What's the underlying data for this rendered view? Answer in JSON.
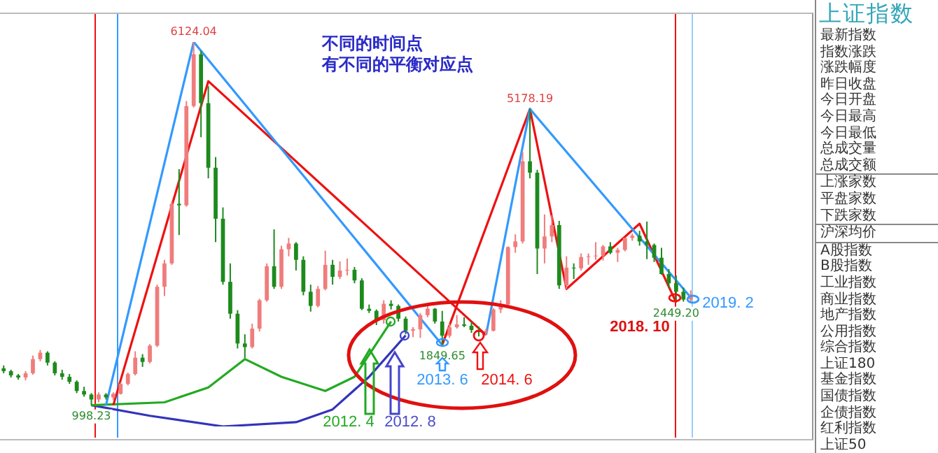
{
  "chart_data": [
    {
      "type": "candlestick",
      "categories": [
        null,
        null,
        null,
        null,
        null,
        null,
        null,
        null,
        null,
        null,
        null,
        null,
        null,
        null,
        null,
        null,
        null,
        null,
        null,
        null,
        null,
        null,
        null,
        null,
        null,
        null,
        null,
        null,
        null,
        null,
        null,
        null,
        null,
        null,
        null,
        null,
        null,
        null,
        null,
        null,
        null,
        null,
        null,
        null,
        null,
        null,
        null,
        null,
        null,
        null,
        null,
        null,
        null,
        null,
        null,
        null,
        null,
        null,
        null,
        null,
        null,
        null,
        null,
        null,
        null,
        null,
        null,
        null,
        null,
        null,
        null,
        null,
        null,
        null,
        null,
        null,
        null,
        null,
        null,
        null,
        null,
        null,
        null,
        null,
        null,
        null,
        null,
        null,
        null,
        null,
        null,
        null,
        null,
        null,
        null
      ],
      "ohlc": [
        [
          1520,
          1560,
          1450,
          1480
        ],
        [
          1480,
          1500,
          1390,
          1420
        ],
        [
          1420,
          1440,
          1360,
          1390
        ],
        [
          1390,
          1480,
          1350,
          1450
        ],
        [
          1450,
          1700,
          1430,
          1650
        ],
        [
          1650,
          1780,
          1620,
          1740
        ],
        [
          1740,
          1760,
          1560,
          1600
        ],
        [
          1600,
          1620,
          1420,
          1450
        ],
        [
          1450,
          1500,
          1360,
          1400
        ],
        [
          1400,
          1440,
          1300,
          1330
        ],
        [
          1330,
          1350,
          1170,
          1200
        ],
        [
          1200,
          1260,
          1120,
          1150
        ],
        [
          1150,
          1170,
          998.23,
          1080
        ],
        [
          1080,
          1180,
          1040,
          1150
        ],
        [
          1150,
          1170,
          1080,
          1110
        ],
        [
          1110,
          1180,
          1070,
          1160
        ],
        [
          1160,
          1320,
          1150,
          1300
        ],
        [
          1300,
          1460,
          1280,
          1440
        ],
        [
          1440,
          1760,
          1420,
          1670
        ],
        [
          1670,
          1720,
          1540,
          1610
        ],
        [
          1610,
          1860,
          1590,
          1840
        ],
        [
          1840,
          2700,
          1820,
          2670
        ],
        [
          2670,
          3050,
          2540,
          3000
        ],
        [
          3000,
          3880,
          2980,
          3840
        ],
        [
          3840,
          4330,
          3400,
          3820
        ],
        [
          3820,
          5290,
          3800,
          5220
        ],
        [
          5220,
          6124.04,
          5200,
          5950
        ],
        [
          5950,
          6000,
          4780,
          5260
        ],
        [
          5260,
          5500,
          4200,
          4350
        ],
        [
          4350,
          4500,
          3300,
          3630
        ],
        [
          3630,
          3790,
          2700,
          2740
        ],
        [
          2740,
          3000,
          2220,
          2290
        ],
        [
          2290,
          2340,
          1800,
          1870
        ],
        [
          1870,
          2000,
          1664,
          1820
        ],
        [
          1820,
          2150,
          1800,
          2080
        ],
        [
          2080,
          2500,
          2040,
          2480
        ],
        [
          2480,
          3000,
          2460,
          2960
        ],
        [
          2960,
          3480,
          2640,
          2670
        ],
        [
          2670,
          3250,
          2640,
          3200
        ],
        [
          3200,
          3360,
          3100,
          3280
        ],
        [
          3280,
          3300,
          2900,
          3050
        ],
        [
          3050,
          3100,
          2550,
          2600
        ],
        [
          2600,
          2700,
          2320,
          2400
        ],
        [
          2400,
          2680,
          2380,
          2640
        ],
        [
          2640,
          3180,
          2620,
          2980
        ],
        [
          2980,
          3050,
          2700,
          2810
        ],
        [
          2810,
          3030,
          2780,
          2900
        ],
        [
          2900,
          3070,
          2830,
          2910
        ],
        [
          2910,
          2950,
          2720,
          2760
        ],
        [
          2760,
          2790,
          2340,
          2360
        ],
        [
          2360,
          2420,
          2300,
          2330
        ],
        [
          2330,
          2350,
          2130,
          2200
        ],
        [
          2200,
          2480,
          2150,
          2430
        ],
        [
          2430,
          2480,
          2350,
          2400
        ],
        [
          2400,
          2420,
          2180,
          2220
        ],
        [
          2220,
          2250,
          2000,
          2050
        ],
        [
          2050,
          2100,
          1960,
          2070
        ],
        [
          2070,
          2300,
          1950,
          2270
        ],
        [
          2270,
          2440,
          2240,
          2360
        ],
        [
          2360,
          2370,
          2150,
          2180
        ],
        [
          2180,
          2330,
          1849.65,
          1980
        ],
        [
          1980,
          2150,
          1950,
          2100
        ],
        [
          2100,
          2270,
          2080,
          2140
        ],
        [
          2140,
          2240,
          2100,
          2120
        ],
        [
          2120,
          2180,
          2020,
          2060
        ],
        [
          2060,
          2110,
          1970,
          2030
        ],
        [
          2030,
          2080,
          1990,
          2050
        ],
        [
          2050,
          2370,
          2040,
          2350
        ],
        [
          2350,
          2480,
          2300,
          2420
        ],
        [
          2420,
          3240,
          2400,
          3230
        ],
        [
          3230,
          3410,
          3150,
          3310
        ],
        [
          3310,
          4570,
          3280,
          4440
        ],
        [
          4440,
          5178.19,
          4200,
          4280
        ],
        [
          4280,
          4320,
          2850,
          3210
        ],
        [
          3210,
          3690,
          3000,
          3380
        ],
        [
          3380,
          3680,
          3300,
          3540
        ],
        [
          3540,
          3600,
          2640,
          2690
        ],
        [
          2690,
          3100,
          2640,
          2940
        ],
        [
          2940,
          3000,
          2780,
          2930
        ],
        [
          2930,
          3140,
          2900,
          3090
        ],
        [
          3090,
          3140,
          2980,
          3100
        ],
        [
          3100,
          3300,
          3050,
          3110
        ],
        [
          3110,
          3260,
          3040,
          3240
        ],
        [
          3240,
          3300,
          3130,
          3150
        ],
        [
          3150,
          3220,
          3020,
          3190
        ],
        [
          3190,
          3360,
          3170,
          3360
        ],
        [
          3360,
          3420,
          3320,
          3390
        ],
        [
          3390,
          3460,
          3250,
          3310
        ],
        [
          3310,
          3590,
          3060,
          3260
        ],
        [
          3260,
          3280,
          3020,
          3080
        ],
        [
          3080,
          3220,
          2840,
          2850
        ],
        [
          2850,
          2920,
          2650,
          2720
        ],
        [
          2720,
          2830,
          2449.2,
          2600
        ],
        [
          2600,
          2660,
          2460,
          2490
        ],
        [
          2490,
          2620,
          2460,
          2560
        ]
      ],
      "series": [
        {
          "type": "line",
          "color": "#3399ff",
          "values": [
            null,
            null,
            null,
            null,
            null,
            null,
            null,
            null,
            null,
            null,
            null,
            null,
            null,
            null,
            1000,
            null,
            null,
            null,
            null,
            null,
            null,
            null,
            null,
            null,
            null,
            null,
            6124.04,
            null,
            null,
            null,
            null,
            null,
            null,
            null,
            null,
            null,
            null,
            null,
            null,
            null,
            null,
            null,
            null,
            null,
            null,
            null,
            null,
            null,
            null,
            null,
            null,
            null,
            null,
            null,
            null,
            null,
            null,
            null,
            null,
            null,
            1849.65,
            null,
            null,
            null,
            null,
            null,
            null,
            null,
            null,
            null,
            null,
            null,
            null,
            null,
            null,
            null,
            null,
            null,
            null,
            null,
            null,
            null,
            null,
            null,
            null,
            null,
            null,
            null,
            null,
            null,
            null,
            null,
            null,
            null,
            null
          ]
        },
        {
          "type": "line",
          "color": "#3399ff",
          "values": [
            null,
            null,
            null,
            null,
            null,
            null,
            null,
            null,
            null,
            null,
            null,
            null,
            null,
            null,
            null,
            null,
            null,
            null,
            null,
            null,
            null,
            null,
            null,
            null,
            null,
            null,
            null,
            null,
            null,
            null,
            null,
            null,
            null,
            null,
            null,
            null,
            null,
            null,
            null,
            null,
            null,
            null,
            null,
            null,
            null,
            null,
            null,
            null,
            null,
            null,
            null,
            null,
            null,
            null,
            null,
            null,
            null,
            null,
            null,
            null,
            null,
            null,
            null,
            null,
            null,
            null,
            1990,
            null,
            null,
            null,
            null,
            null,
            5178.19,
            null,
            null,
            null,
            null,
            null,
            null,
            null,
            null,
            null,
            null,
            null,
            null,
            null,
            null,
            null,
            null,
            null,
            null,
            null,
            null,
            null,
            2520
          ]
        },
        {
          "type": "line",
          "color": "#ee1111",
          "values": [
            null,
            null,
            null,
            null,
            null,
            null,
            null,
            null,
            null,
            null,
            null,
            null,
            null,
            null,
            null,
            1000,
            null,
            null,
            null,
            null,
            null,
            null,
            null,
            null,
            null,
            null,
            null,
            null,
            5570,
            null,
            null,
            null,
            null,
            null,
            null,
            null,
            null,
            null,
            null,
            null,
            null,
            null,
            null,
            null,
            null,
            null,
            null,
            null,
            null,
            null,
            null,
            null,
            null,
            null,
            null,
            null,
            null,
            null,
            null,
            null,
            null,
            null,
            null,
            null,
            null,
            null,
            1990,
            null,
            null,
            null,
            null,
            null,
            null,
            null,
            null,
            null,
            null,
            null,
            null,
            null,
            null,
            null,
            null,
            null,
            null,
            null,
            null,
            null,
            null,
            null,
            null,
            null,
            null,
            null,
            null
          ]
        },
        {
          "type": "line",
          "color": "#ee1111",
          "values": [
            null,
            null,
            null,
            null,
            null,
            null,
            null,
            null,
            null,
            null,
            null,
            null,
            null,
            null,
            null,
            null,
            null,
            null,
            null,
            null,
            null,
            null,
            null,
            null,
            null,
            null,
            null,
            null,
            null,
            null,
            null,
            null,
            null,
            null,
            null,
            null,
            null,
            null,
            null,
            null,
            null,
            null,
            null,
            null,
            null,
            null,
            null,
            null,
            null,
            null,
            null,
            null,
            null,
            null,
            null,
            null,
            null,
            null,
            null,
            null,
            1849.65,
            null,
            null,
            null,
            null,
            null,
            null,
            null,
            null,
            null,
            null,
            null,
            5178.19,
            null,
            null,
            null,
            null,
            2640,
            null,
            null,
            null,
            null,
            null,
            null,
            null,
            null,
            null,
            3560,
            null,
            null,
            null,
            null,
            2449.2,
            null,
            null
          ]
        },
        {
          "type": "line",
          "color": "#22aa22",
          "values": [
            null,
            null,
            null,
            null,
            null,
            null,
            null,
            null,
            null,
            null,
            null,
            null,
            1000,
            null,
            null,
            null,
            null,
            null,
            null,
            null,
            null,
            null,
            1040,
            null,
            null,
            null,
            null,
            null,
            1250,
            null,
            null,
            null,
            null,
            1650,
            null,
            null,
            null,
            null,
            1400,
            null,
            null,
            null,
            null,
            null,
            1200,
            null,
            null,
            null,
            1400,
            null,
            null,
            null,
            null,
            2180,
            null,
            null,
            null,
            null,
            null,
            null,
            null,
            null,
            null,
            null,
            null,
            null,
            null,
            null,
            null,
            null,
            null,
            null,
            null,
            null,
            null,
            null,
            null,
            null,
            null,
            null,
            null,
            null,
            null,
            null,
            null,
            null,
            null,
            null,
            null,
            null,
            null,
            null,
            null,
            null,
            null
          ]
        },
        {
          "type": "line",
          "color": "#3333bb",
          "values": [
            null,
            null,
            null,
            null,
            null,
            null,
            null,
            null,
            null,
            null,
            null,
            null,
            1000,
            null,
            null,
            null,
            null,
            null,
            null,
            null,
            850,
            null,
            null,
            null,
            null,
            null,
            null,
            null,
            null,
            null,
            700,
            null,
            null,
            null,
            null,
            null,
            null,
            null,
            null,
            null,
            760,
            null,
            null,
            null,
            null,
            940,
            null,
            null,
            null,
            null,
            1400,
            null,
            null,
            null,
            null,
            1985,
            null,
            null,
            null,
            null,
            null,
            null,
            null,
            null,
            null,
            null,
            null,
            null,
            null,
            null,
            null,
            null,
            null,
            null,
            null,
            null,
            null,
            null,
            null,
            null,
            null,
            null,
            null,
            null,
            null,
            null,
            null,
            null,
            null,
            null,
            null,
            null,
            null,
            null,
            null
          ]
        }
      ],
      "annotations": [
        "不同的时间点",
        "有不同的平衡对应点",
        "2012. 4",
        "2012. 8",
        "2013. 6",
        "2014. 6",
        "2018. 10",
        "2019. 2",
        {
          "text": "6124.04",
          "y": 6124.04
        },
        {
          "text": "998.23",
          "y": 998.23
        },
        {
          "text": "1849.65",
          "y": 1849.65
        },
        {
          "text": "5178.19",
          "y": 5178.19
        },
        {
          "text": "2449.20",
          "y": 2449.2
        }
      ]
    },
    {
      "type": "other",
      "title": "上证指数",
      "annotations": [
        "最新指数",
        "指数涨跌",
        "涨跌幅度",
        "昨日收盘",
        "今日开盘",
        "今日最高",
        "今日最低",
        "总成交量",
        "总成交额",
        "上涨家数",
        "平盘家数",
        "下跌家数",
        "沪深均价",
        "A股指数",
        "B股指数",
        "工业指数",
        "商业指数",
        "地产指数",
        "公用指数",
        "综合指数",
        "上证180",
        "基金指数",
        "国债指数",
        "企债指数",
        "红利指数",
        "上证50"
      ]
    }
  ]
}
